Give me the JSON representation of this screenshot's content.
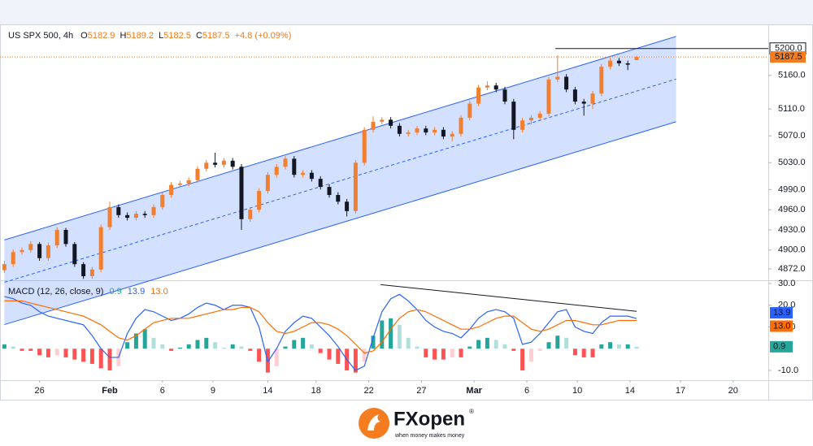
{
  "chart_data": [
    {
      "type": "candlestick",
      "title": "US SPX 500, 4h",
      "ohlc_labels": [
        "O",
        "H",
        "L",
        "C"
      ],
      "change": "+4.8 (+0.09%)",
      "x": [
        1,
        3,
        5,
        7,
        9,
        11,
        13,
        15,
        17,
        19,
        21,
        23,
        25,
        27,
        29,
        31,
        33,
        35,
        37,
        39,
        41,
        43,
        45,
        47,
        49,
        51,
        53,
        55,
        57,
        59,
        61,
        63,
        65,
        67,
        69,
        71,
        73,
        75,
        77,
        79,
        81,
        83,
        85,
        87,
        89,
        91,
        93,
        95,
        97,
        99,
        101,
        103,
        105,
        107,
        109,
        111,
        113,
        115,
        117,
        119,
        121,
        123,
        125,
        127,
        129,
        131,
        133,
        135,
        137,
        139,
        141,
        143,
        145
      ],
      "open": [
        4870,
        4879,
        4897,
        4900,
        4909,
        4888,
        4907,
        4930,
        4909,
        4879,
        4861,
        4871,
        4934,
        4964,
        4952,
        4948,
        4954,
        4952,
        4964,
        4982,
        4997,
        4999,
        5004,
        5021,
        5030,
        5027,
        5033,
        5024,
        4946,
        4960,
        4988,
        5012,
        5024,
        5036,
        5012,
        5015,
        5006,
        4994,
        4982,
        4972,
        4958,
        5030,
        5079,
        5091,
        5094,
        5085,
        5073,
        5075,
        5081,
        5075,
        5079,
        5069,
        5073,
        5097,
        5118,
        5142,
        5145,
        5139,
        5121,
        5079,
        5093,
        5097,
        5103,
        5154,
        5158,
        5139,
        5121,
        5118,
        5133,
        5173,
        5182,
        5178,
        5182.9
      ],
      "high": [
        4884,
        4901,
        4904,
        4913,
        4912,
        4911,
        4934,
        4933,
        4912,
        4882,
        4875,
        4938,
        4972,
        4968,
        4956,
        4958,
        4958,
        4968,
        4986,
        5001,
        5003,
        5008,
        5025,
        5034,
        5045,
        5037,
        5037,
        5028,
        4964,
        4992,
        5016,
        5028,
        5040,
        5040,
        5019,
        5019,
        5010,
        4998,
        4986,
        4976,
        5034,
        5083,
        5099,
        5098,
        5098,
        5089,
        5079,
        5085,
        5085,
        5083,
        5083,
        5077,
        5101,
        5122,
        5146,
        5151,
        5149,
        5143,
        5125,
        5097,
        5101,
        5107,
        5158,
        5190,
        5162,
        5143,
        5125,
        5137,
        5177,
        5186,
        5186,
        5182,
        5189.2
      ],
      "low": [
        4866,
        4875,
        4893,
        4896,
        4884,
        4884,
        4903,
        4905,
        4875,
        4857,
        4857,
        4867,
        4930,
        4948,
        4944,
        4944,
        4948,
        4948,
        4960,
        4978,
        4993,
        4995,
        5000,
        5017,
        5023,
        5023,
        5020,
        4930,
        4942,
        4956,
        4984,
        5008,
        5020,
        5008,
        5008,
        5002,
        4990,
        4978,
        4968,
        4950,
        4954,
        5026,
        5075,
        5087,
        5081,
        5069,
        5069,
        5071,
        5071,
        5071,
        5065,
        5062,
        5069,
        5093,
        5114,
        5138,
        5135,
        5117,
        5065,
        5075,
        5087,
        5093,
        5099,
        5150,
        5135,
        5117,
        5100,
        5110,
        5129,
        5169,
        5174,
        5168,
        5182.5
      ],
      "close": [
        4879,
        4897,
        4900,
        4909,
        4888,
        4907,
        4930,
        4909,
        4879,
        4861,
        4871,
        4934,
        4964,
        4952,
        4948,
        4954,
        4952,
        4964,
        4982,
        4997,
        4999,
        5004,
        5021,
        5030,
        5027,
        5033,
        5024,
        4946,
        4960,
        4988,
        5012,
        5024,
        5036,
        5012,
        5015,
        5006,
        4994,
        4982,
        4972,
        4958,
        5030,
        5079,
        5091,
        5094,
        5085,
        5073,
        5075,
        5081,
        5075,
        5079,
        5069,
        5073,
        5097,
        5118,
        5142,
        5145,
        5139,
        5121,
        5079,
        5093,
        5097,
        5103,
        5154,
        5158,
        5139,
        5121,
        5118,
        5133,
        5173,
        5182,
        5178,
        5176,
        5187.5
      ],
      "up_color": "#f07f30",
      "down_color": "#131722",
      "xlim": [
        0,
        175
      ],
      "xticks": [
        {
          "value": 9,
          "label": "26"
        },
        {
          "value": 25,
          "label": "Feb"
        },
        {
          "value": 37,
          "label": "6"
        },
        {
          "value": 48.5,
          "label": "9"
        },
        {
          "value": 61,
          "label": "14"
        },
        {
          "value": 72,
          "label": "18"
        },
        {
          "value": 84,
          "label": "22"
        },
        {
          "value": 96,
          "label": "27"
        },
        {
          "value": 108,
          "label": "Mar"
        },
        {
          "value": 120,
          "label": "6"
        },
        {
          "value": 131.5,
          "label": "10"
        },
        {
          "value": 143.5,
          "label": "14"
        },
        {
          "value": 155,
          "label": "17"
        },
        {
          "value": 167,
          "label": "20"
        }
      ],
      "ylim": [
        4855,
        5236
      ],
      "yticks": [
        {
          "value": 5160,
          "label": "5160.0"
        },
        {
          "value": 5110,
          "label": "5110.0"
        },
        {
          "value": 5070,
          "label": "5070.0"
        },
        {
          "value": 5030,
          "label": "5030.0"
        },
        {
          "value": 4990,
          "label": "4990.0"
        },
        {
          "value": 4960,
          "label": "4960.0"
        },
        {
          "value": 4930,
          "label": "4930.0"
        },
        {
          "value": 4900,
          "label": "4900.0"
        },
        {
          "value": 4872,
          "label": "4872.0"
        }
      ],
      "grid": false,
      "channel": {
        "x": [
          1,
          154
        ],
        "upper": [
          4915,
          5218
        ],
        "lower": [
          4789,
          5091
        ],
        "color": "#2962ff"
      },
      "resistance": {
        "x": [
          126.5,
          175
        ],
        "value": 5200,
        "label": "5200.0",
        "color": "#131722"
      },
      "last_price_color": "#f57c1f"
    },
    {
      "type": "macd",
      "title": "MACD (12, 26, close, 9)",
      "ylim": [
        -14.5,
        31.5
      ],
      "yticks": [
        {
          "value": 30,
          "label": "30.0"
        },
        {
          "value": 20,
          "label": "20.0"
        },
        {
          "value": 10,
          "label": "10.0"
        },
        {
          "value": -10,
          "label": "-10.0"
        }
      ],
      "histogram": {
        "colors": [
          "#26a69a",
          "#b2dfdb",
          "#ff5252",
          "#ffcdd2"
        ],
        "values": [
          2,
          1,
          -1,
          -1,
          -3,
          -4,
          -3,
          -4,
          -5,
          -6,
          -7,
          -9,
          -10,
          -8,
          3,
          7,
          9,
          5,
          2,
          -1,
          0.5,
          2,
          4,
          5,
          3,
          0.5,
          2,
          1,
          -1,
          -6,
          -11,
          -8,
          1,
          4,
          5,
          2,
          -2,
          -5,
          -7,
          -10,
          -11,
          -6,
          6,
          13,
          14,
          11,
          5,
          1,
          -4,
          -5,
          -5,
          -4,
          -4,
          1,
          4,
          5,
          4,
          2,
          -1,
          -10,
          -6,
          -1,
          3,
          6,
          5,
          -3,
          -4,
          -4,
          2,
          3,
          2,
          2,
          0.9
        ]
      },
      "series": [
        {
          "color": "#2962ff",
          "values": [
            24,
            23,
            21,
            20,
            17,
            15,
            14,
            13,
            12,
            11,
            6,
            0,
            -4,
            -4,
            7,
            14,
            18,
            17,
            15,
            13,
            14,
            16,
            19,
            21,
            20,
            18,
            20,
            20,
            19,
            10,
            -6,
            0,
            8,
            12,
            15,
            14,
            10,
            6,
            1,
            -5,
            -10,
            -8,
            5,
            17,
            23,
            25,
            22,
            18,
            13,
            10,
            8,
            7,
            5,
            9,
            14,
            17,
            18,
            17,
            14,
            2,
            3,
            7,
            12,
            17,
            18,
            10,
            8,
            7,
            12,
            15,
            15,
            15,
            13.9
          ]
        },
        {
          "color": "#ff6d00",
          "last_label": "13.0",
          "values": [
            22,
            22,
            22,
            21,
            20,
            19,
            18,
            17,
            16,
            15,
            13,
            11,
            8,
            5,
            4,
            6,
            9,
            12,
            13,
            14,
            14,
            14,
            15,
            16,
            17,
            18,
            18,
            19,
            19,
            17,
            12,
            8,
            7,
            8,
            10,
            12,
            12,
            11,
            9,
            6,
            2,
            -2,
            -1,
            3,
            9,
            14,
            17,
            18,
            17,
            15,
            13,
            11,
            9,
            9,
            10,
            12,
            14,
            15,
            15,
            12,
            9,
            8,
            9,
            11,
            13,
            13,
            12,
            11,
            11,
            12,
            13,
            13,
            13.0
          ]
        }
      ],
      "trendline": {
        "x": [
          86.7,
          145
        ],
        "values": [
          29.5,
          17.2
        ],
        "color": "#131722"
      }
    }
  ],
  "footer": {
    "brand": "FXopen",
    "registered": "®",
    "tagline": "when money makes money"
  }
}
